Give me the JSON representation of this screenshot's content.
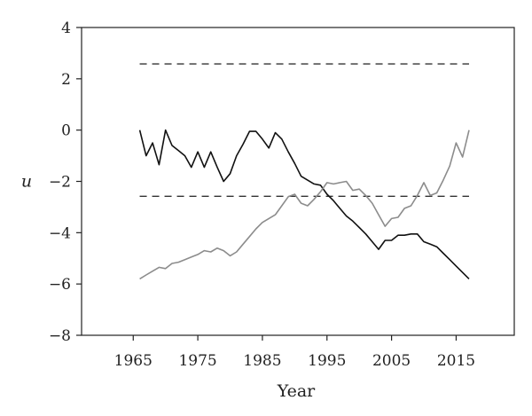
{
  "chart_data": {
    "type": "line",
    "xlabel": "Year",
    "ylabel": "u",
    "xlim": [
      1957,
      2024
    ],
    "ylim": [
      -8,
      4
    ],
    "x_ticks": [
      1965,
      1975,
      1985,
      1995,
      2005,
      2015
    ],
    "y_ticks": [
      4,
      2,
      0,
      -2,
      -4,
      -6,
      -8
    ],
    "y_tick_labels": [
      "4",
      "2",
      "0",
      "−2",
      "−4",
      "−6",
      "−8"
    ],
    "reference_lines": [
      {
        "y": 2.58,
        "x_start": 1966,
        "x_end": 2017,
        "style": "dashed",
        "color": "#333333"
      },
      {
        "y": -2.58,
        "x_start": 1966,
        "x_end": 2017,
        "style": "dashed",
        "color": "#333333"
      }
    ],
    "series": [
      {
        "color": "#111111",
        "points": [
          [
            1966,
            0.0
          ],
          [
            1967,
            -1.0
          ],
          [
            1968,
            -0.5
          ],
          [
            1969,
            -1.35
          ],
          [
            1970,
            0.0
          ],
          [
            1971,
            -0.6
          ],
          [
            1972,
            -0.8
          ],
          [
            1973,
            -1.0
          ],
          [
            1974,
            -1.45
          ],
          [
            1975,
            -0.85
          ],
          [
            1976,
            -1.45
          ],
          [
            1977,
            -0.85
          ],
          [
            1978,
            -1.45
          ],
          [
            1979,
            -2.0
          ],
          [
            1980,
            -1.7
          ],
          [
            1981,
            -1.0
          ],
          [
            1982,
            -0.55
          ],
          [
            1983,
            -0.05
          ],
          [
            1984,
            -0.05
          ],
          [
            1985,
            -0.35
          ],
          [
            1986,
            -0.7
          ],
          [
            1987,
            -0.1
          ],
          [
            1988,
            -0.35
          ],
          [
            1989,
            -0.85
          ],
          [
            1990,
            -1.3
          ],
          [
            1991,
            -1.8
          ],
          [
            1992,
            -1.95
          ],
          [
            1993,
            -2.1
          ],
          [
            1994,
            -2.15
          ],
          [
            1995,
            -2.5
          ],
          [
            1996,
            -2.75
          ],
          [
            1997,
            -3.05
          ],
          [
            1998,
            -3.35
          ],
          [
            1999,
            -3.55
          ],
          [
            2000,
            -3.8
          ],
          [
            2001,
            -4.05
          ],
          [
            2002,
            -4.35
          ],
          [
            2003,
            -4.65
          ],
          [
            2004,
            -4.3
          ],
          [
            2005,
            -4.3
          ],
          [
            2006,
            -4.1
          ],
          [
            2007,
            -4.1
          ],
          [
            2008,
            -4.05
          ],
          [
            2009,
            -4.05
          ],
          [
            2010,
            -4.35
          ],
          [
            2011,
            -4.45
          ],
          [
            2012,
            -4.55
          ],
          [
            2013,
            -4.8
          ],
          [
            2014,
            -5.05
          ],
          [
            2015,
            -5.3
          ],
          [
            2016,
            -5.55
          ],
          [
            2017,
            -5.8
          ]
        ]
      },
      {
        "color": "#8c8c8c",
        "points": [
          [
            1966,
            -5.8
          ],
          [
            1967,
            -5.65
          ],
          [
            1968,
            -5.5
          ],
          [
            1969,
            -5.35
          ],
          [
            1970,
            -5.4
          ],
          [
            1971,
            -5.2
          ],
          [
            1972,
            -5.15
          ],
          [
            1973,
            -5.05
          ],
          [
            1974,
            -4.95
          ],
          [
            1975,
            -4.85
          ],
          [
            1976,
            -4.7
          ],
          [
            1977,
            -4.75
          ],
          [
            1978,
            -4.6
          ],
          [
            1979,
            -4.7
          ],
          [
            1980,
            -4.9
          ],
          [
            1981,
            -4.75
          ],
          [
            1982,
            -4.45
          ],
          [
            1983,
            -4.15
          ],
          [
            1984,
            -3.85
          ],
          [
            1985,
            -3.6
          ],
          [
            1986,
            -3.45
          ],
          [
            1987,
            -3.3
          ],
          [
            1988,
            -2.95
          ],
          [
            1989,
            -2.6
          ],
          [
            1990,
            -2.5
          ],
          [
            1991,
            -2.85
          ],
          [
            1992,
            -2.95
          ],
          [
            1993,
            -2.7
          ],
          [
            1994,
            -2.4
          ],
          [
            1995,
            -2.05
          ],
          [
            1996,
            -2.1
          ],
          [
            1997,
            -2.05
          ],
          [
            1998,
            -2.0
          ],
          [
            1999,
            -2.35
          ],
          [
            2000,
            -2.3
          ],
          [
            2001,
            -2.55
          ],
          [
            2002,
            -2.85
          ],
          [
            2003,
            -3.3
          ],
          [
            2004,
            -3.75
          ],
          [
            2005,
            -3.45
          ],
          [
            2006,
            -3.4
          ],
          [
            2007,
            -3.05
          ],
          [
            2008,
            -2.95
          ],
          [
            2009,
            -2.55
          ],
          [
            2010,
            -2.05
          ],
          [
            2011,
            -2.55
          ],
          [
            2012,
            -2.45
          ],
          [
            2013,
            -1.95
          ],
          [
            2014,
            -1.4
          ],
          [
            2015,
            -0.5
          ],
          [
            2016,
            -1.05
          ],
          [
            2017,
            0.0
          ]
        ]
      }
    ]
  }
}
